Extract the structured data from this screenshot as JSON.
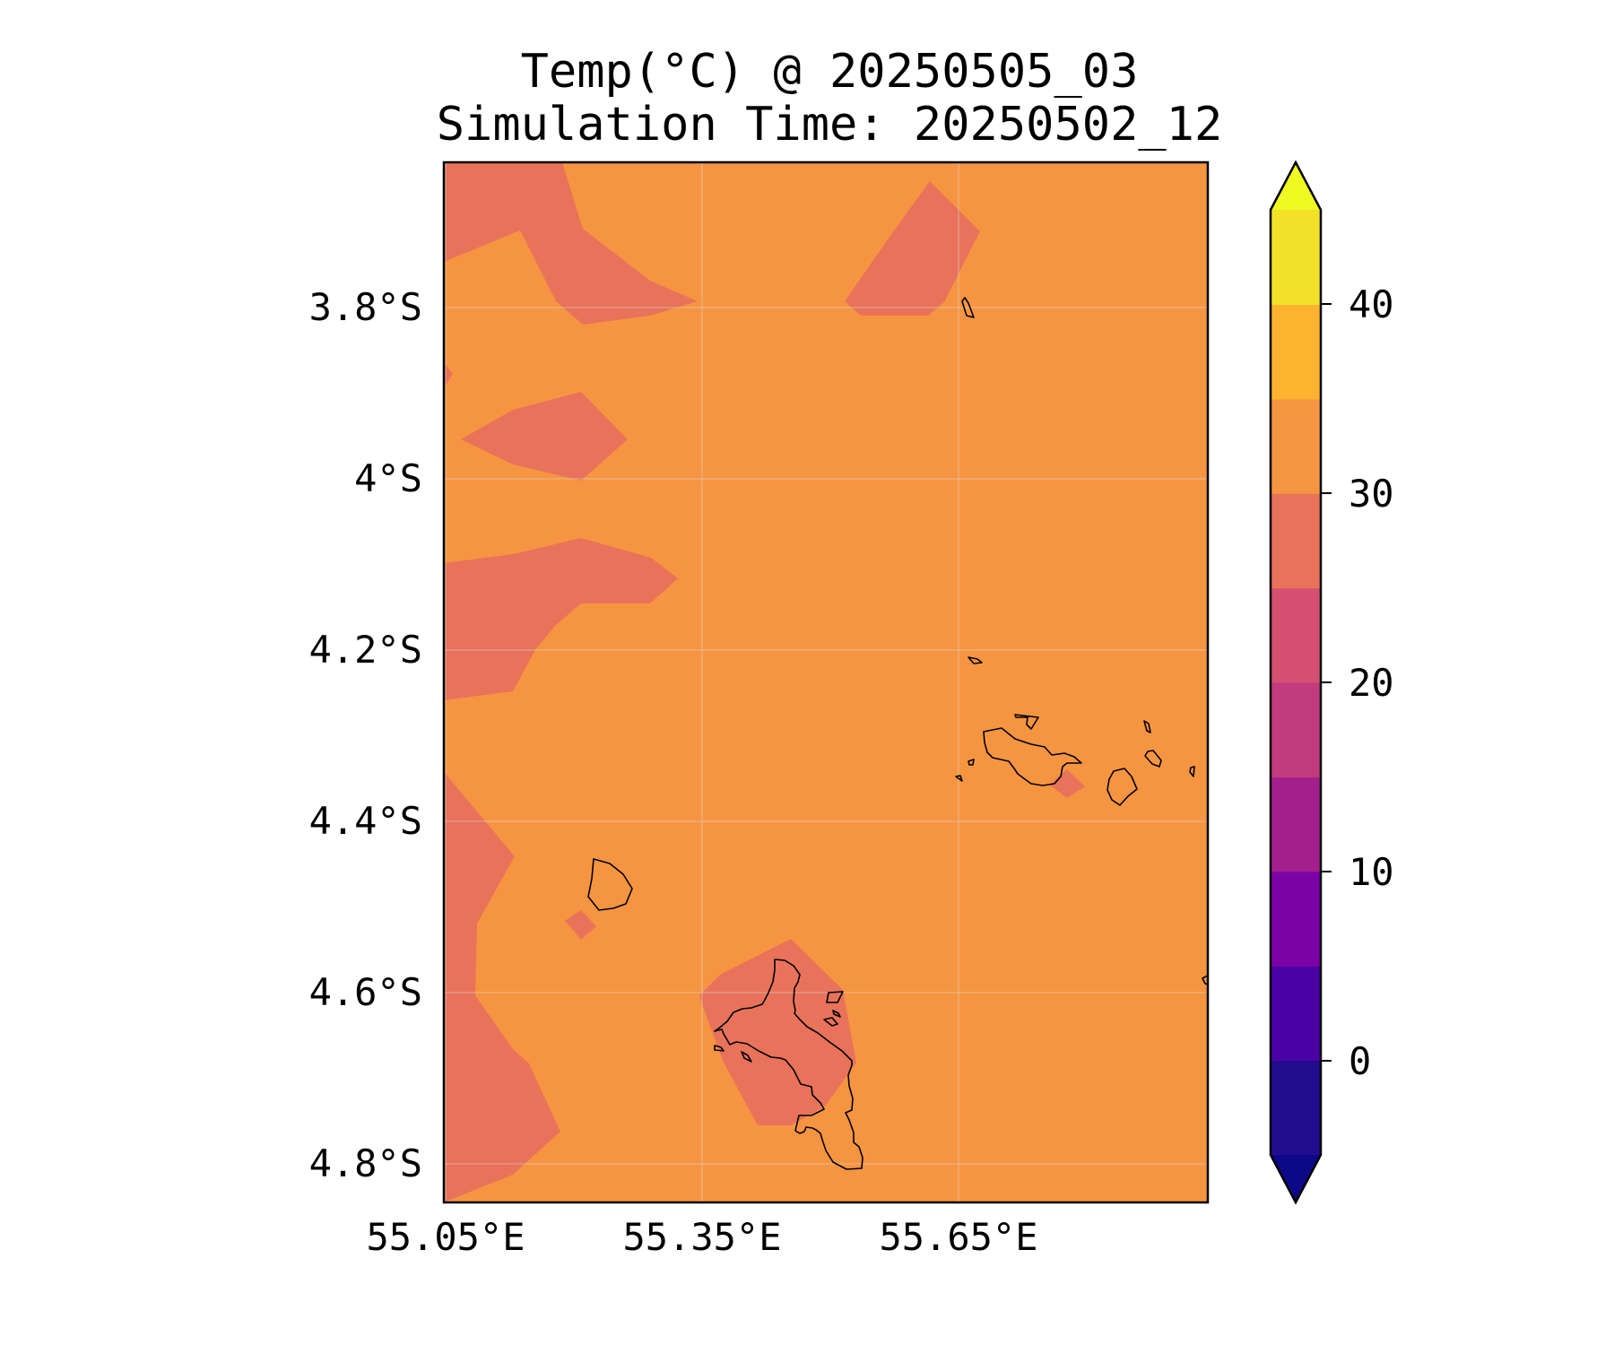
{
  "figure": {
    "title_line1": "Temp(°C) @ 20250505_03",
    "title_line2": "Simulation Time: 20250502_12"
  },
  "map": {
    "lon_ticks": [
      "55.05°E",
      "55.35°E",
      "55.65°E"
    ],
    "lat_ticks": [
      "3.8°S",
      "4°S",
      "4.2°S",
      "4.4°S",
      "4.6°S",
      "4.8°S"
    ],
    "colors": {
      "band_25_30": "#e8735a",
      "band_30_35": "#f69541",
      "coastline": "#000000",
      "frame": "#000000",
      "gridline": "#d9d9d9"
    }
  },
  "colorbar": {
    "tick_labels": [
      "40",
      "30",
      "20",
      "10",
      "0"
    ],
    "levels": [
      -5,
      0,
      5,
      10,
      15,
      20,
      25,
      30,
      35,
      40,
      45
    ],
    "colors": [
      "#220c90",
      "#4a02a6",
      "#7c02a8",
      "#a3208c",
      "#c13b7e",
      "#d55070",
      "#e8735a",
      "#f69541",
      "#fdb32f",
      "#f2e22a"
    ],
    "under_color": "#0d0887",
    "over_color": "#f0f921",
    "extend": "both"
  }
}
